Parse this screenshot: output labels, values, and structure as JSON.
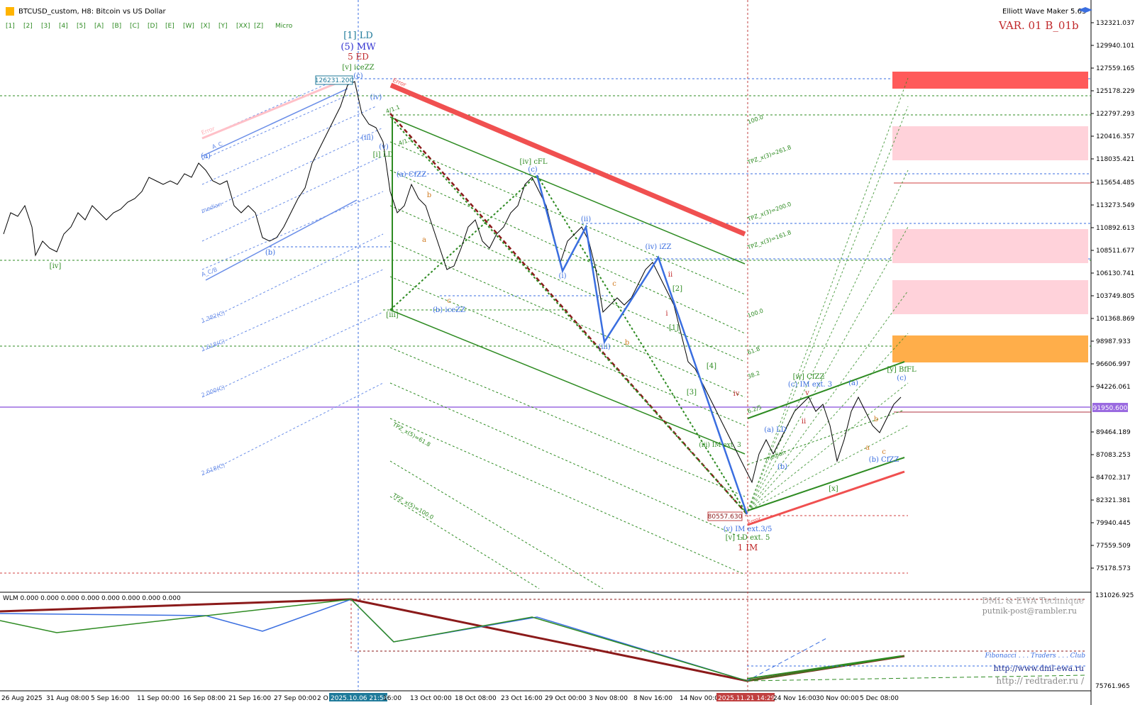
{
  "window": {
    "symbol_title": "BTCUSD_custom, H8:  Bitcoin vs US Dollar",
    "indicator_name": "Elliott Wave Maker 5.63",
    "variant": "VAR. 01 B_01b"
  },
  "toolbar": {
    "degree_buttons": [
      "[1]",
      "[2]",
      "[3]",
      "[4]",
      "[5]",
      "[A]",
      "[B]",
      "[C]",
      "[D]",
      "[E]",
      "[W]",
      "[X]",
      "[Y]",
      "[XX]",
      "[Z]",
      "Micro"
    ]
  },
  "price_axis": {
    "ticks": [
      "132321.037",
      "129940.101",
      "127559.165",
      "125178.229",
      "122797.293",
      "120416.357",
      "118035.421",
      "115654.485",
      "113273.549",
      "110892.613",
      "108511.677",
      "106130.741",
      "103749.805",
      "101368.869",
      "98987.933",
      "96606.997",
      "94226.061",
      "91950.600",
      "89464.189",
      "87083.253",
      "84702.317",
      "82321.381",
      "79940.445",
      "77559.509",
      "75178.573"
    ],
    "current_price": "91950.600"
  },
  "time_axis": {
    "labels": [
      "26 Aug 2025",
      "31 Aug 08:00",
      "5 Sep 16:00",
      "11 Sep 00:00",
      "16 Sep 08:00",
      "21 Sep 16:00",
      "27 Sep 00:00",
      "2 O",
      "2025.10.06 21:58",
      "16:00",
      "13 Oct 00:00",
      "18 Oct 08:00",
      "23 Oct 16:00",
      "29 Oct 00:00",
      "3 Nov 08:00",
      "8 Nov 16:00",
      "14 Nov 00:00",
      "2025.11.21 14:29",
      "24 Nov 16:00",
      "30 Nov 00:00",
      "5 Dec 08:00"
    ]
  },
  "price_boxes": {
    "high": "126231.200",
    "low": "80557.630"
  },
  "wave_labels": {
    "top_1": "[1] LD",
    "top_2": "(5) MW",
    "top_3": "5 ED",
    "top_4": "[v] iceZZ",
    "iv_left": "[iv]",
    "i_ld": "[i] LD",
    "iii_bracket": "[iii]",
    "iv_cfl": "[iv] cFL",
    "a_cfzz": "(a) CfZZ",
    "b_iceZZ": "(b) iceZZ",
    "iv_izz": "(iv) iZZ",
    "w_cfzz": "[w] CfZZ",
    "c_im": "(c) IM ext. 3",
    "a_ld": "(a) LD",
    "y_bffl": "[y] BfFL",
    "b_cfzz": "(b) CfZZ",
    "x_bracket": "[x]",
    "v_im": "(v) IM ext.3/5",
    "v_ld": "[v] LD ext. 5",
    "one_im": "1 IM",
    "iii_ext": "(iii) IM ext. 3",
    "c_small": "(c)",
    "ii_small": "(ii)",
    "i_small": "(i)",
    "iii_small": "(iii)",
    "three_b": "[3]",
    "four_b": "[4]",
    "one_b": "[1]",
    "two_b": "[2]",
    "b_small": "(b)",
    "a_small": "(a)",
    "iii_left": "(iii)",
    "v_left": "(v)",
    "a_left": "(a)",
    "b_left": "(b)",
    "c_top": "(c)",
    "iv_top": "(iv)",
    "iii_low": "(iii)",
    "b_low": "(b)",
    "a_top": "(a)",
    "c_right": "(c)",
    "iv_small": "iv",
    "ii_low": "ii",
    "i_low": "i",
    "v_mid": "v",
    "ii_mid": "ii",
    "a_or": "a",
    "b_or": "b",
    "c_or": "c",
    "a_or2": "a",
    "b_or2": "b",
    "c_or2": "c",
    "b_or3": "b",
    "c_or3": "c"
  },
  "fib_labels": {
    "left": [
      "Error",
      "A_C",
      "A_C",
      "median",
      "A_C/B",
      "1.382(C)",
      "1.618(C)",
      "2.000(C)",
      "2.618(C)"
    ],
    "right": [
      "100.0",
      "TPZ_x(3)=261.8",
      "TPZ_x(3)=200.0",
      "TPZ_x(3)=161.8",
      "100.0",
      "61.8",
      "38.2",
      "6.2/5"
    ],
    "lower": [
      "TPZ_x(5)=61.8",
      "TPZ_x(5)=100.0"
    ],
    "channel": [
      "Error",
      "4/1.1",
      "4/1.1",
      "median",
      "A_C",
      "Error"
    ]
  },
  "lower_panel": {
    "indicator": "WLM 0.000 0.000 0.000 0.000 0.000 0.000 0.000 0.000",
    "scale_top": "131026.925",
    "scale_bottom": "75761.965",
    "brand_1": "DML & EWA Technique",
    "brand_2": "putnik-post@rambler.ru",
    "brand_3": "Fibonacci . . . Traders . . . Club",
    "brand_4": "http://www.dml-ewa.ru",
    "brand_5": "http:// redtrader.ru /"
  },
  "colors": {
    "bull_green": "#2e8b22",
    "bear_red": "#f05050",
    "wave_blue": "#3a6ee0",
    "label_teal": "#1f7a9a",
    "price_line": "#9a6ae0",
    "zone_red": "#ff5a5a",
    "zone_pink": "#ffd2da",
    "zone_orange": "#ffae4a"
  }
}
